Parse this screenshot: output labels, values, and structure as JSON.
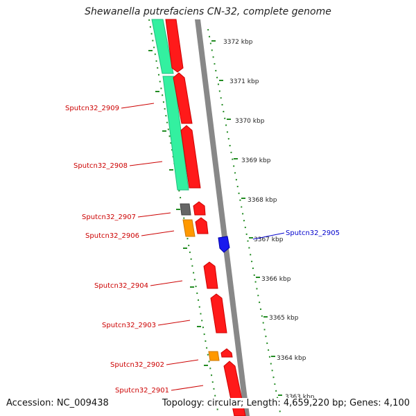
{
  "title": "Shewanella putrefaciens CN-32, complete genome",
  "footer": {
    "accession": "Accession: NC_009438",
    "info": "Topology: circular; Length: 4,659,220 bp; Genes: 4,100"
  },
  "colors": {
    "gene_red": "#ff1a1a",
    "gene_label_red": "#cc0000",
    "gene_label_blue": "#0000cc",
    "rrna_green": "#33f0a0",
    "grey_feature": "#666666",
    "orange_feature": "#ff9900",
    "blue_feature": "#1a1aee",
    "tick_green": "#228b22",
    "backbone_grey": "#888888"
  },
  "kbp_labels": [
    "3372 kbp",
    "3371 kbp",
    "3370 kbp",
    "3369 kbp",
    "3368 kbp",
    "3367 kbp",
    "3366 kbp",
    "3365 kbp",
    "3364 kbp",
    "3363 kbp"
  ],
  "gene_labels": [
    {
      "text": "Sputcn32_2909",
      "color": "#cc0000"
    },
    {
      "text": "Sputcn32_2908",
      "color": "#cc0000"
    },
    {
      "text": "Sputcn32_2907",
      "color": "#cc0000"
    },
    {
      "text": "Sputcn32_2906",
      "color": "#cc0000"
    },
    {
      "text": "Sputcn32_2905",
      "color": "#0000cc"
    },
    {
      "text": "Sputcn32_2904",
      "color": "#cc0000"
    },
    {
      "text": "Sputcn32_2903",
      "color": "#cc0000"
    },
    {
      "text": "Sputcn32_2902",
      "color": "#cc0000"
    },
    {
      "text": "Sputcn32_2901",
      "color": "#cc0000"
    }
  ]
}
